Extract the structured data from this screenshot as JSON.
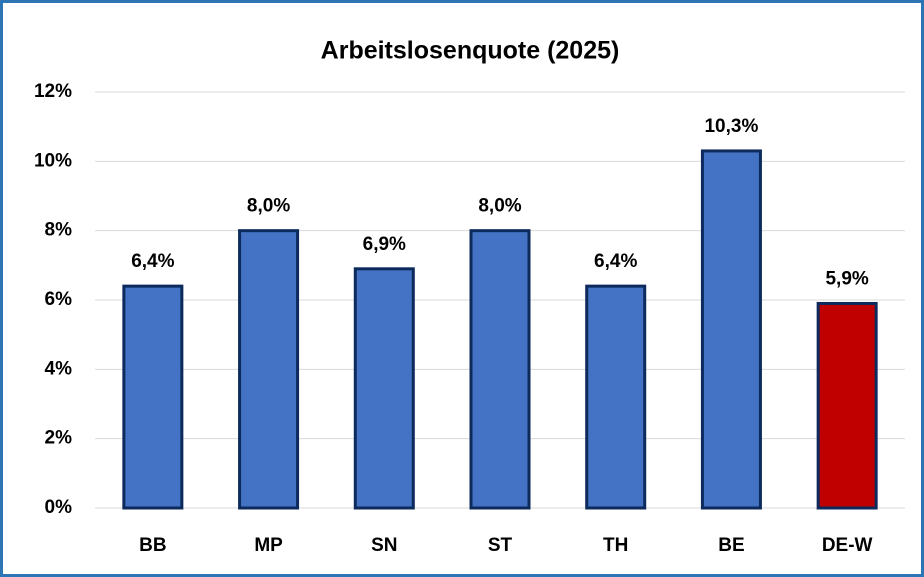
{
  "chart_data": {
    "type": "bar",
    "title": "Arbeitslosenquote (2025)",
    "categories": [
      "BB",
      "MP",
      "SN",
      "ST",
      "TH",
      "BE",
      "DE-W"
    ],
    "values": [
      6.4,
      8.0,
      6.9,
      8.0,
      6.4,
      10.3,
      5.9
    ],
    "value_labels": [
      "6,4%",
      "8,0%",
      "6,9%",
      "8,0%",
      "6,4%",
      "10,3%",
      "5,9%"
    ],
    "colors": [
      "#4472c4",
      "#4472c4",
      "#4472c4",
      "#4472c4",
      "#4472c4",
      "#4472c4",
      "#c00000"
    ],
    "ylim": [
      0,
      12
    ],
    "yticks": [
      {
        "value": 0,
        "label": "0%"
      },
      {
        "value": 2,
        "label": "2%"
      },
      {
        "value": 4,
        "label": "4%"
      },
      {
        "value": 6,
        "label": "6%"
      },
      {
        "value": 8,
        "label": "8%"
      },
      {
        "value": 10,
        "label": "10%"
      },
      {
        "value": 12,
        "label": "12%"
      }
    ],
    "grid": true
  }
}
